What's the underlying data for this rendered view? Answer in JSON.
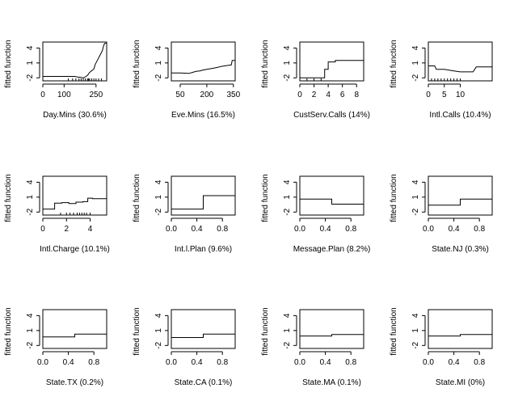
{
  "figure": {
    "ylabel": "fitted function",
    "background": "#ffffff",
    "line_color": "#000000"
  },
  "chart_data": [
    {
      "type": "line",
      "xlabel": "Day.Mins  (30.6%)",
      "ylabel": "fitted function",
      "xlim": [
        0,
        300
      ],
      "ylim": [
        -2.6,
        5.2
      ],
      "xticks": [
        0,
        100,
        250
      ],
      "xtick_labels": [
        "0",
        "100",
        "250"
      ],
      "yticks": [
        -2,
        1,
        4
      ],
      "ytick_labels": [
        "-2",
        "1",
        "4"
      ],
      "x": [
        0,
        150,
        160,
        180,
        190,
        200,
        210,
        218,
        225,
        232,
        240,
        246,
        250,
        256,
        262,
        268,
        274,
        280,
        285,
        290,
        300
      ],
      "y": [
        -1.7,
        -1.7,
        -1.8,
        -1.9,
        -2.0,
        -1.8,
        -1.5,
        -1.0,
        -0.7,
        -0.5,
        -0.2,
        0.7,
        1.0,
        1.5,
        2.0,
        2.5,
        3.0,
        3.5,
        4.4,
        4.9,
        5.0
      ],
      "rug": [
        120,
        140,
        155,
        170,
        180,
        190,
        200,
        210,
        215,
        220,
        230,
        240,
        250,
        262,
        275
      ]
    },
    {
      "type": "line",
      "xlabel": "Eve.Mins  (16.5%)",
      "ylabel": "fitted function",
      "xlim": [
        0,
        360
      ],
      "ylim": [
        -2.6,
        5.2
      ],
      "xticks": [
        50,
        200,
        350
      ],
      "xtick_labels": [
        "50",
        "200",
        "350"
      ],
      "yticks": [
        -2,
        1,
        4
      ],
      "ytick_labels": [
        "-2",
        "1",
        "4"
      ],
      "x": [
        0,
        50,
        100,
        120,
        140,
        160,
        180,
        200,
        230,
        260,
        280,
        300,
        320,
        338,
        343,
        360
      ],
      "y": [
        -1.0,
        -1.0,
        -1.1,
        -0.9,
        -0.7,
        -0.6,
        -0.4,
        -0.3,
        -0.1,
        0.1,
        0.3,
        0.4,
        0.5,
        0.6,
        1.5,
        1.5
      ],
      "rug": []
    },
    {
      "type": "step",
      "xlabel": "CustServ.Calls  (14%)",
      "ylabel": "fitted function",
      "xlim": [
        0,
        9
      ],
      "ylim": [
        -2.6,
        5.2
      ],
      "xticks": [
        0,
        2,
        4,
        6,
        8
      ],
      "xtick_labels": [
        "0",
        "2",
        "4",
        "6",
        "8"
      ],
      "yticks": [
        -2,
        1,
        4
      ],
      "ytick_labels": [
        "-2",
        "1",
        "4"
      ],
      "x": [
        0,
        3.5,
        3.5,
        4.0,
        4.0,
        5.0,
        5.0,
        9
      ],
      "y": [
        -2.0,
        -2.0,
        -0.3,
        -0.3,
        1.2,
        1.2,
        1.5,
        1.5
      ],
      "rug": [
        0,
        1,
        2,
        3
      ]
    },
    {
      "type": "line",
      "xlabel": "Intl.Calls  (10.4%)",
      "ylabel": "fitted function",
      "xlim": [
        0,
        20
      ],
      "ylim": [
        -2.6,
        5.2
      ],
      "xticks": [
        0,
        5,
        10
      ],
      "xtick_labels": [
        "0",
        "5",
        "10"
      ],
      "yticks": [
        -2,
        1,
        4
      ],
      "ytick_labels": [
        "-2",
        "1",
        "4"
      ],
      "x": [
        0,
        2,
        2.5,
        5,
        8,
        10,
        14,
        15,
        20
      ],
      "y": [
        0.4,
        0.4,
        -0.3,
        -0.3,
        -0.6,
        -0.8,
        -0.8,
        0.2,
        0.2
      ],
      "rug": [
        0,
        1,
        2,
        3,
        4,
        5,
        6,
        7,
        8,
        9,
        10
      ]
    },
    {
      "type": "line",
      "xlabel": "Intl.Charge  (10.1%)",
      "ylabel": "fitted function",
      "xlim": [
        0,
        5.4
      ],
      "ylim": [
        -2.6,
        5.2
      ],
      "xticks": [
        0,
        2,
        4
      ],
      "xtick_labels": [
        "0",
        "2",
        "4"
      ],
      "yticks": [
        -2,
        1,
        4
      ],
      "ytick_labels": [
        "-2",
        "1",
        "4"
      ],
      "x": [
        0,
        1.0,
        1.0,
        1.6,
        1.6,
        2.2,
        2.2,
        2.8,
        2.8,
        3.4,
        3.4,
        3.8,
        3.8,
        4.2,
        4.2,
        5.4
      ],
      "y": [
        -1.4,
        -1.4,
        -0.2,
        -0.2,
        -0.1,
        -0.1,
        -0.3,
        -0.3,
        0.0,
        0.0,
        0.1,
        0.1,
        0.8,
        0.8,
        0.7,
        0.7
      ],
      "rug": [
        1.5,
        2.0,
        2.3,
        2.6,
        2.9,
        3.1,
        3.3,
        3.5,
        3.7,
        4.0
      ]
    },
    {
      "type": "step",
      "xlabel": "Int.l.Plan  (9.6%)",
      "ylabel": "fitted function",
      "xlim": [
        0,
        1
      ],
      "ylim": [
        -2.6,
        5.2
      ],
      "xticks": [
        0,
        0.4,
        0.8
      ],
      "xtick_labels": [
        "0.0",
        "0.4",
        "0.8"
      ],
      "yticks": [
        -2,
        1,
        4
      ],
      "ytick_labels": [
        "-2",
        "1",
        "4"
      ],
      "x": [
        0,
        0.5,
        0.5,
        1
      ],
      "y": [
        -1.4,
        -1.4,
        1.3,
        1.3
      ],
      "rug": []
    },
    {
      "type": "step",
      "xlabel": "Message.Plan  (8.2%)",
      "ylabel": "fitted function",
      "xlim": [
        0,
        1
      ],
      "ylim": [
        -2.6,
        5.2
      ],
      "xticks": [
        0,
        0.4,
        0.8
      ],
      "xtick_labels": [
        "0.0",
        "0.4",
        "0.8"
      ],
      "yticks": [
        -2,
        1,
        4
      ],
      "ytick_labels": [
        "-2",
        "1",
        "4"
      ],
      "x": [
        0,
        0.5,
        0.5,
        1
      ],
      "y": [
        0.6,
        0.6,
        -0.4,
        -0.4
      ],
      "rug": []
    },
    {
      "type": "step",
      "xlabel": "State.NJ  (0.3%)",
      "ylabel": "fitted function",
      "xlim": [
        0,
        1
      ],
      "ylim": [
        -2.6,
        5.2
      ],
      "xticks": [
        0,
        0.4,
        0.8
      ],
      "xtick_labels": [
        "0.0",
        "0.4",
        "0.8"
      ],
      "yticks": [
        -2,
        1,
        4
      ],
      "ytick_labels": [
        "-2",
        "1",
        "4"
      ],
      "x": [
        0,
        0.5,
        0.5,
        1
      ],
      "y": [
        -0.6,
        -0.6,
        0.6,
        0.6
      ],
      "rug": []
    },
    {
      "type": "step",
      "xlabel": "State.TX  (0.2%)",
      "ylabel": "fitted function",
      "xlim": [
        0,
        1
      ],
      "ylim": [
        -2.6,
        5.2
      ],
      "xticks": [
        0,
        0.4,
        0.8
      ],
      "xtick_labels": [
        "0.0",
        "0.4",
        "0.8"
      ],
      "yticks": [
        -2,
        1,
        4
      ],
      "ytick_labels": [
        "-2",
        "1",
        "4"
      ],
      "x": [
        0,
        0.5,
        0.5,
        1
      ],
      "y": [
        -0.3,
        -0.3,
        0.3,
        0.3
      ],
      "rug": []
    },
    {
      "type": "step",
      "xlabel": "State.CA  (0.1%)",
      "ylabel": "fitted function",
      "xlim": [
        0,
        1
      ],
      "ylim": [
        -2.6,
        5.2
      ],
      "xticks": [
        0,
        0.4,
        0.8
      ],
      "xtick_labels": [
        "0.0",
        "0.4",
        "0.8"
      ],
      "yticks": [
        -2,
        1,
        4
      ],
      "ytick_labels": [
        "-2",
        "1",
        "4"
      ],
      "x": [
        0,
        0.5,
        0.5,
        1
      ],
      "y": [
        -0.4,
        -0.4,
        0.3,
        0.3
      ],
      "rug": []
    },
    {
      "type": "step",
      "xlabel": "State.MA  (0.1%)",
      "ylabel": "fitted function",
      "xlim": [
        0,
        1
      ],
      "ylim": [
        -2.6,
        5.2
      ],
      "xticks": [
        0,
        0.4,
        0.8
      ],
      "xtick_labels": [
        "0.0",
        "0.4",
        "0.8"
      ],
      "yticks": [
        -2,
        1,
        4
      ],
      "ytick_labels": [
        "-2",
        "1",
        "4"
      ],
      "x": [
        0,
        0.5,
        0.5,
        1
      ],
      "y": [
        -0.1,
        -0.1,
        0.2,
        0.2
      ],
      "rug": []
    },
    {
      "type": "step",
      "xlabel": "State.MI  (0%)",
      "ylabel": "fitted function",
      "xlim": [
        0,
        1
      ],
      "ylim": [
        -2.6,
        5.2
      ],
      "xticks": [
        0,
        0.4,
        0.8
      ],
      "xtick_labels": [
        "0.0",
        "0.4",
        "0.8"
      ],
      "yticks": [
        -2,
        1,
        4
      ],
      "ytick_labels": [
        "-2",
        "1",
        "4"
      ],
      "x": [
        0,
        0.5,
        0.5,
        1
      ],
      "y": [
        -0.1,
        -0.1,
        0.2,
        0.2
      ],
      "rug": []
    }
  ]
}
